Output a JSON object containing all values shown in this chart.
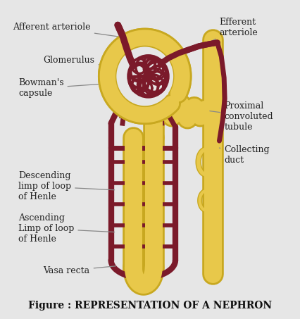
{
  "bg_color": "#e6e6e6",
  "title": "Figure : REPRESENTATION OF A NEPHRON",
  "yellow": "#e8c84a",
  "yellow_edge": "#c8a820",
  "dark_red": "#7B1A2A",
  "ann_color": "#333333",
  "line_color": "#888888",
  "labels": {
    "afferent_arteriole": "Afferent arteriole",
    "glomerulus": "Glomerulus",
    "bowmans_capsule": "Bowman's\ncapsule",
    "efferent_arteriole": "Efferent\narteriole",
    "proximal_convoluted": "Proximal\nconvoluted\ntubule",
    "collecting_duct": "Collecting\nduct",
    "descending": "Descending\nlimp of loop\nof Henle",
    "ascending": "Ascending\nLimp of loop\nof Henle",
    "vasa_recta": "Vasa recta"
  }
}
